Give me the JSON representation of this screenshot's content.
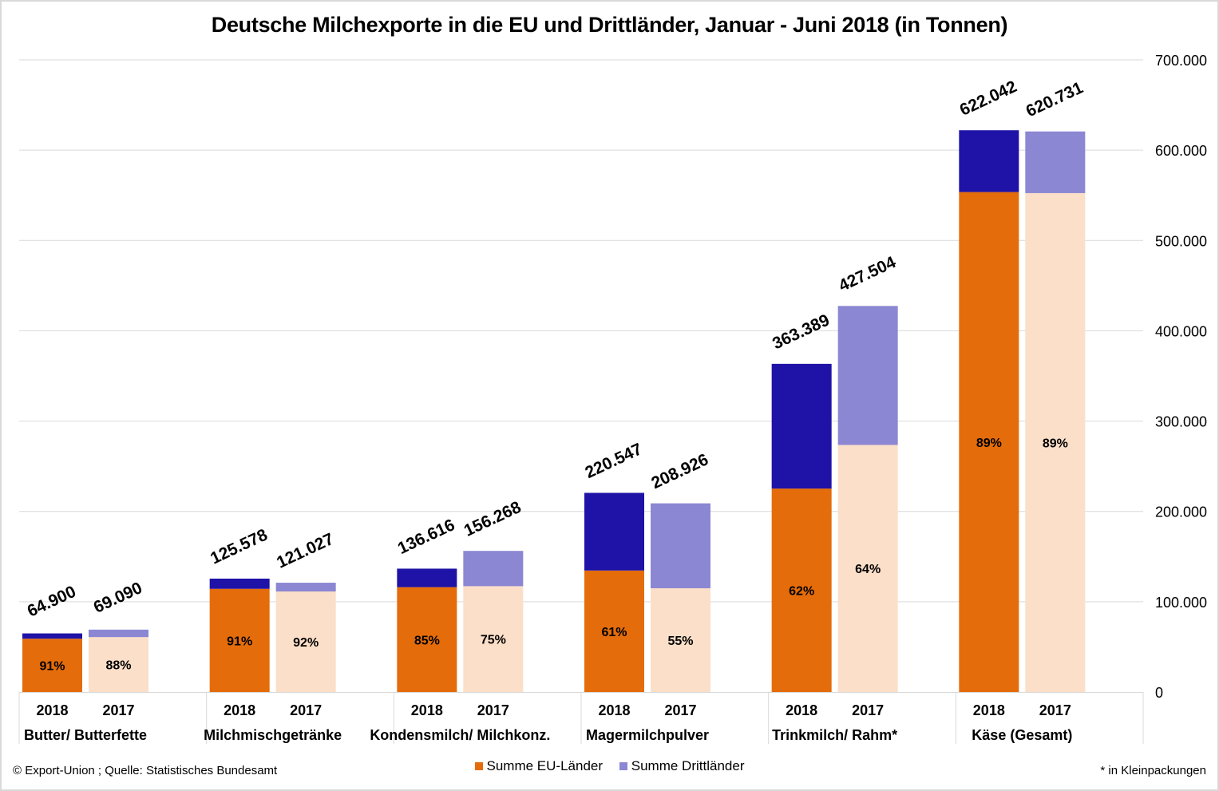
{
  "chart_data": {
    "type": "bar",
    "stacked": true,
    "title": "Deutsche Milchexporte in die EU und Drittländer, Januar - Juni 2018 (in Tonnen)",
    "xlabel": "",
    "ylabel": "",
    "ylim": [
      0,
      700000
    ],
    "yticks": [
      0,
      100000,
      200000,
      300000,
      400000,
      500000,
      600000,
      700000
    ],
    "ytick_labels": [
      "0",
      "100.000",
      "200.000",
      "300.000",
      "400.000",
      "500.000",
      "600.000",
      "700.000"
    ],
    "y_axis_position": "right",
    "grid": true,
    "legend_position": "bottom",
    "series": [
      {
        "name": "Summe EU-Länder",
        "color_2018": "#e46c0a",
        "color_2017": "#fbdfc8"
      },
      {
        "name": "Summe Drittländer",
        "color_2018": "#1f12a6",
        "color_2017": "#8c87d2"
      }
    ],
    "categories": [
      {
        "name": "Butter/ Butterfette",
        "bars": [
          {
            "year": "2018",
            "total": 64900,
            "total_label": "64.900",
            "eu_pct": 91,
            "pct_label": "91%"
          },
          {
            "year": "2017",
            "total": 69090,
            "total_label": "69.090",
            "eu_pct": 88,
            "pct_label": "88%"
          }
        ]
      },
      {
        "name": "Milchmischgetränke",
        "bars": [
          {
            "year": "2018",
            "total": 125578,
            "total_label": "125.578",
            "eu_pct": 91,
            "pct_label": "91%"
          },
          {
            "year": "2017",
            "total": 121027,
            "total_label": "121.027",
            "eu_pct": 92,
            "pct_label": "92%"
          }
        ]
      },
      {
        "name": "Kondensmilch/ Milchkonz.",
        "bars": [
          {
            "year": "2018",
            "total": 136616,
            "total_label": "136.616",
            "eu_pct": 85,
            "pct_label": "85%"
          },
          {
            "year": "2017",
            "total": 156268,
            "total_label": "156.268",
            "eu_pct": 75,
            "pct_label": "75%"
          }
        ]
      },
      {
        "name": "Magermilchpulver",
        "bars": [
          {
            "year": "2018",
            "total": 220547,
            "total_label": "220.547",
            "eu_pct": 61,
            "pct_label": "61%"
          },
          {
            "year": "2017",
            "total": 208926,
            "total_label": "208.926",
            "eu_pct": 55,
            "pct_label": "55%"
          }
        ]
      },
      {
        "name": "Trinkmilch/ Rahm*",
        "bars": [
          {
            "year": "2018",
            "total": 363389,
            "total_label": "363.389",
            "eu_pct": 62,
            "pct_label": "62%"
          },
          {
            "year": "2017",
            "total": 427504,
            "total_label": "427.504",
            "eu_pct": 64,
            "pct_label": "64%"
          }
        ]
      },
      {
        "name": "Käse (Gesamt)",
        "bars": [
          {
            "year": "2018",
            "total": 622042,
            "total_label": "622.042",
            "eu_pct": 89,
            "pct_label": "89%"
          },
          {
            "year": "2017",
            "total": 620731,
            "total_label": "620.731",
            "eu_pct": 89,
            "pct_label": "89%"
          }
        ]
      }
    ]
  },
  "legend": {
    "eu_label": "Summe EU-Länder",
    "third_label": "Summe Drittländer"
  },
  "footer": {
    "source": "© Export-Union  ; Quelle:  Statistisches  Bundesamt",
    "footnote": "* in Kleinpackungen"
  }
}
